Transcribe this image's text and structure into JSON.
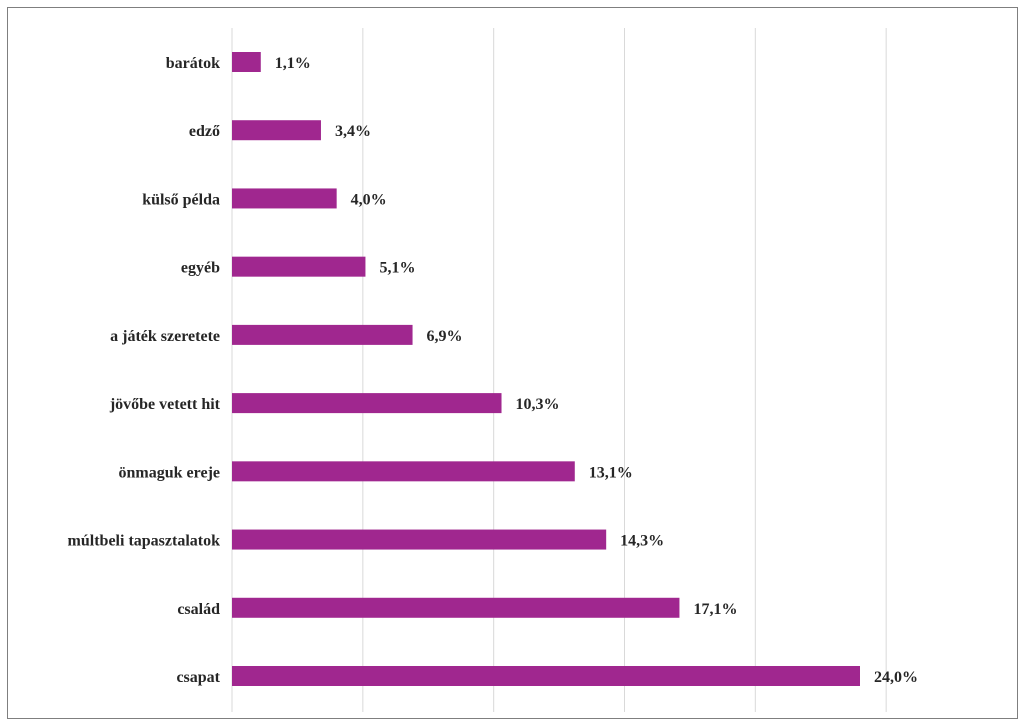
{
  "chart_data": {
    "type": "bar",
    "orientation": "horizontal",
    "categories": [
      "barátok",
      "edző",
      "külső példa",
      "egyéb",
      "a játék szeretete",
      "jövőbe vetett hit",
      "önmaguk ereje",
      "múltbeli tapasztalatok",
      "család",
      "csapat"
    ],
    "values": [
      1.1,
      3.4,
      4.0,
      5.1,
      6.9,
      10.3,
      13.1,
      14.3,
      17.1,
      24.0
    ],
    "value_labels": [
      "1,1%",
      "3,4%",
      "4,0%",
      "5,1%",
      "6,9%",
      "10,3%",
      "13,1%",
      "14,3%",
      "17,1%",
      "24,0%"
    ],
    "unit": "%",
    "xlim": [
      0,
      30
    ],
    "grid": true,
    "bar_color": "#a0278f",
    "title": "",
    "xlabel": "",
    "ylabel": ""
  }
}
